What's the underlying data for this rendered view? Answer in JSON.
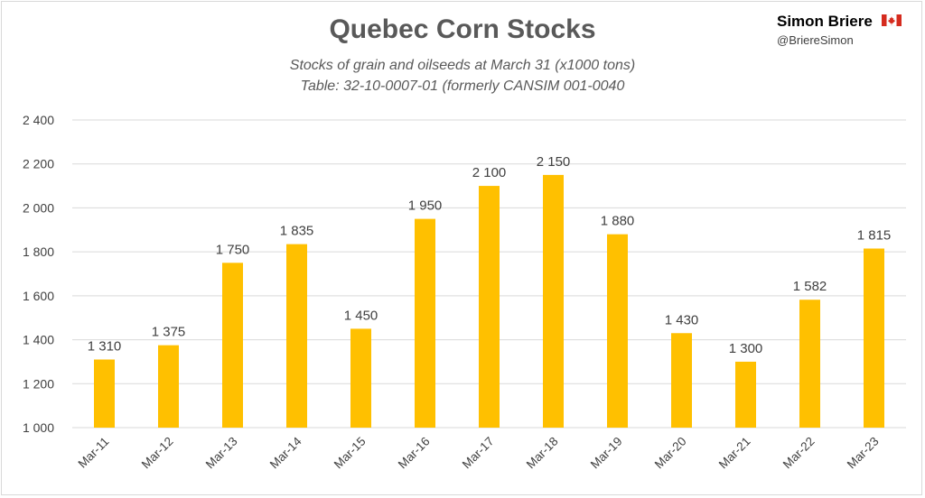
{
  "header": {
    "author": "Simon Briere",
    "handle": "@BriereSimon",
    "flag_icon": "canada-flag-icon"
  },
  "chart_data": {
    "type": "bar",
    "title": "Quebec Corn Stocks",
    "subtitle": "Stocks of grain and oilseeds at March 31 (x1000 tons)",
    "source": "Table: 32-10-0007-01 (formerly CANSIM 001-0040",
    "categories": [
      "Mar-11",
      "Mar-12",
      "Mar-13",
      "Mar-14",
      "Mar-15",
      "Mar-16",
      "Mar-17",
      "Mar-18",
      "Mar-19",
      "Mar-20",
      "Mar-21",
      "Mar-22",
      "Mar-23"
    ],
    "values": [
      1310,
      1375,
      1750,
      1835,
      1450,
      1950,
      2100,
      2150,
      1880,
      1430,
      1300,
      1582,
      1815
    ],
    "value_labels": [
      "1 310",
      "1 375",
      "1 750",
      "1 835",
      "1 450",
      "1 950",
      "2 100",
      "2 150",
      "1 880",
      "1 430",
      "1 300",
      "1 582",
      "1 815"
    ],
    "ylim": [
      1000,
      2400
    ],
    "yticks": [
      1000,
      1200,
      1400,
      1600,
      1800,
      2000,
      2200,
      2400
    ],
    "ytick_labels": [
      "1 000",
      "1 200",
      "1 400",
      "1 600",
      "1 800",
      "2 000",
      "2 200",
      "2 400"
    ],
    "xlabel": "",
    "ylabel": "",
    "grid": true,
    "bar_color": "#FFC000",
    "grid_color": "#d9d9d9"
  }
}
